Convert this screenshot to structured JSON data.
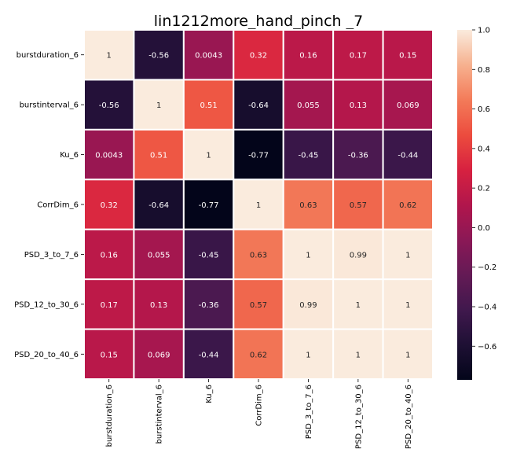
{
  "chart_data": {
    "type": "heatmap",
    "title": "lin1212more_hand_pinch _7",
    "row_labels": [
      "burstduration_6",
      "burstinterval_6",
      "Ku_6",
      "CorrDim_6",
      "PSD_3_to_7_6",
      "PSD_12_to_30_6",
      "PSD_20_to_40_6"
    ],
    "col_labels": [
      "burstduration_6",
      "burstinterval_6",
      "Ku_6",
      "CorrDim_6",
      "PSD_3_to_7_6",
      "PSD_12_to_30_6",
      "PSD_20_to_40_6"
    ],
    "values": [
      [
        1,
        -0.56,
        0.0043,
        0.32,
        0.16,
        0.17,
        0.15
      ],
      [
        -0.56,
        1,
        0.51,
        -0.64,
        0.055,
        0.13,
        0.069
      ],
      [
        0.0043,
        0.51,
        1,
        -0.77,
        -0.45,
        -0.36,
        -0.44
      ],
      [
        0.32,
        -0.64,
        -0.77,
        1,
        0.63,
        0.57,
        0.62
      ],
      [
        0.16,
        0.055,
        -0.45,
        0.63,
        1,
        0.99,
        1
      ],
      [
        0.17,
        0.13,
        -0.36,
        0.57,
        0.99,
        1,
        1
      ],
      [
        0.15,
        0.069,
        -0.44,
        0.62,
        1,
        1,
        1
      ]
    ],
    "cell_text": [
      [
        "1",
        "-0.56",
        "0.0043",
        "0.32",
        "0.16",
        "0.17",
        "0.15"
      ],
      [
        "-0.56",
        "1",
        "0.51",
        "-0.64",
        "0.055",
        "0.13",
        "0.069"
      ],
      [
        "0.0043",
        "0.51",
        "1",
        "-0.77",
        "-0.45",
        "-0.36",
        "-0.44"
      ],
      [
        "0.32",
        "-0.64",
        "-0.77",
        "1",
        "0.63",
        "0.57",
        "0.62"
      ],
      [
        "0.16",
        "0.055",
        "-0.45",
        "0.63",
        "1",
        "0.99",
        "1"
      ],
      [
        "0.17",
        "0.13",
        "-0.36",
        "0.57",
        "0.99",
        "1",
        "1"
      ],
      [
        "0.15",
        "0.069",
        "-0.44",
        "0.62",
        "1",
        "1",
        "1"
      ]
    ],
    "colorbar": {
      "min": -0.77,
      "max": 1.0,
      "ticks": [
        1.0,
        0.8,
        0.6,
        0.4,
        0.2,
        0.0,
        -0.2,
        -0.4,
        -0.6
      ],
      "tick_labels": [
        "1.0",
        "0.8",
        "0.6",
        "0.4",
        "0.2",
        "0.0",
        "−0.2",
        "−0.4",
        "−0.6"
      ]
    },
    "colormap": "rocket",
    "cell_border_color": "#ffffff"
  }
}
